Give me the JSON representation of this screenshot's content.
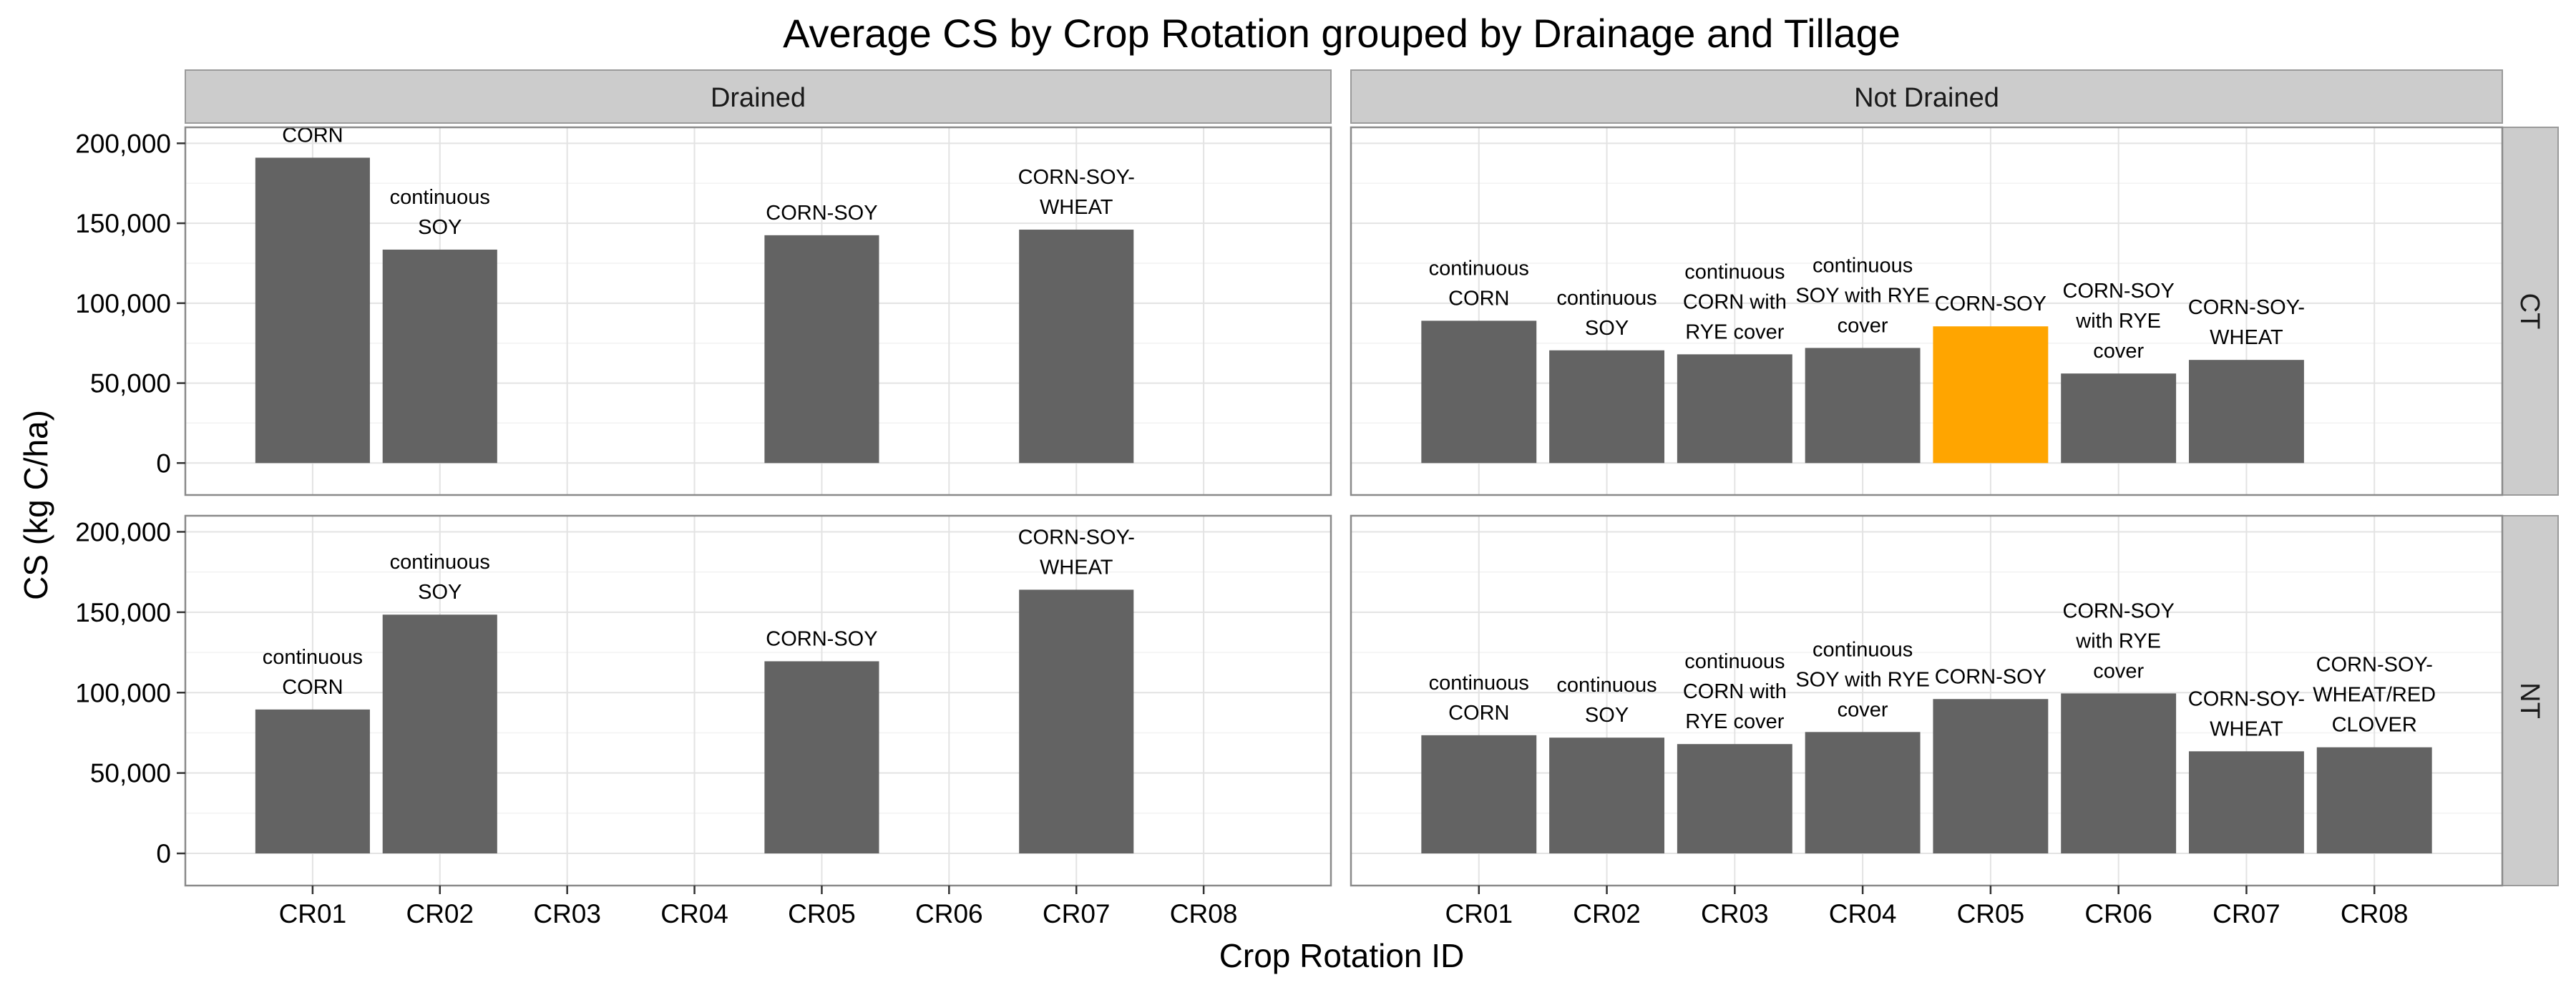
{
  "chart_data": {
    "type": "bar",
    "title": "Average CS by Crop Rotation grouped by Drainage and Tillage",
    "xlabel": "Crop Rotation ID",
    "ylabel": "CS (kg C/ha)",
    "ylim": [
      -20000,
      210000
    ],
    "y_ticks": [
      {
        "value": 0,
        "label": "0"
      },
      {
        "value": 50000,
        "label": "50,000"
      },
      {
        "value": 100000,
        "label": "100,000"
      },
      {
        "value": 150000,
        "label": "150,000"
      },
      {
        "value": 200000,
        "label": "200,000"
      }
    ],
    "categories": [
      "CR01",
      "CR02",
      "CR03",
      "CR04",
      "CR05",
      "CR06",
      "CR07",
      "CR08"
    ],
    "grid": true,
    "column_facets": [
      "Drained",
      "Not Drained"
    ],
    "row_facets": [
      "CT",
      "NT"
    ],
    "bar_color": "#636363",
    "highlight_color": "#FFA500",
    "panels": [
      {
        "col": "Drained",
        "row": "CT",
        "bars": [
          {
            "category": "CR01",
            "value": 191000,
            "label": "continuous\nCORN"
          },
          {
            "category": "CR02",
            "value": 133500,
            "label": "continuous\nSOY"
          },
          {
            "category": "CR05",
            "value": 142500,
            "label": "CORN-SOY"
          },
          {
            "category": "CR07",
            "value": 146000,
            "label": "CORN-SOY-\nWHEAT"
          }
        ]
      },
      {
        "col": "Not Drained",
        "row": "CT",
        "bars": [
          {
            "category": "CR01",
            "value": 89000,
            "label": "continuous\nCORN"
          },
          {
            "category": "CR02",
            "value": 70500,
            "label": "continuous\nSOY"
          },
          {
            "category": "CR03",
            "value": 68000,
            "label": "continuous\nCORN with\nRYE cover"
          },
          {
            "category": "CR04",
            "value": 72000,
            "label": "continuous\nSOY with RYE\ncover"
          },
          {
            "category": "CR05",
            "value": 85500,
            "label": "CORN-SOY",
            "highlight": true
          },
          {
            "category": "CR06",
            "value": 56000,
            "label": "CORN-SOY\nwith RYE\ncover"
          },
          {
            "category": "CR07",
            "value": 64500,
            "label": "CORN-SOY-\nWHEAT"
          }
        ]
      },
      {
        "col": "Drained",
        "row": "NT",
        "bars": [
          {
            "category": "CR01",
            "value": 89500,
            "label": "continuous\nCORN"
          },
          {
            "category": "CR02",
            "value": 148500,
            "label": "continuous\nSOY"
          },
          {
            "category": "CR05",
            "value": 119500,
            "label": "CORN-SOY"
          },
          {
            "category": "CR07",
            "value": 164000,
            "label": "CORN-SOY-\nWHEAT"
          }
        ]
      },
      {
        "col": "Not Drained",
        "row": "NT",
        "bars": [
          {
            "category": "CR01",
            "value": 73500,
            "label": "continuous\nCORN"
          },
          {
            "category": "CR02",
            "value": 72000,
            "label": "continuous\nSOY"
          },
          {
            "category": "CR03",
            "value": 68000,
            "label": "continuous\nCORN with\nRYE cover"
          },
          {
            "category": "CR04",
            "value": 75500,
            "label": "continuous\nSOY with RYE\ncover"
          },
          {
            "category": "CR05",
            "value": 96000,
            "label": "CORN-SOY"
          },
          {
            "category": "CR06",
            "value": 99500,
            "label": "CORN-SOY\nwith RYE\ncover"
          },
          {
            "category": "CR07",
            "value": 63500,
            "label": "CORN-SOY-\nWHEAT"
          },
          {
            "category": "CR08",
            "value": 66000,
            "label": "CORN-SOY-\nWHEAT/RED\nCLOVER"
          }
        ]
      }
    ]
  }
}
